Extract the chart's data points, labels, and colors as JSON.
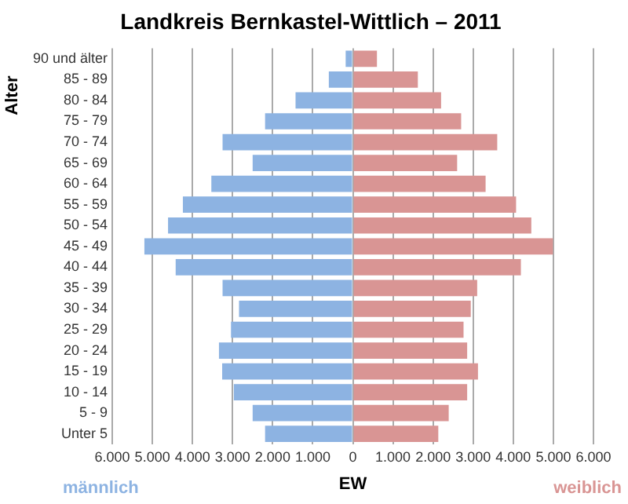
{
  "chart_data": {
    "type": "bar",
    "orientation": "horizontal",
    "stacked": true,
    "title": "Landkreis Bernkastel-Wittlich – 2011",
    "xlabel": "EW",
    "ylabel": "Alter",
    "categories": [
      "90 und älter",
      "85 - 89",
      "80 - 84",
      "75 - 79",
      "70 - 74",
      "65 - 69",
      "60 - 64",
      "55 - 59",
      "50 - 54",
      "45 - 49",
      "40 - 44",
      "35 - 39",
      "30 - 34",
      "25 - 29",
      "20 - 24",
      "15 - 19",
      "10 - 14",
      "5 - 9",
      "Unter 5"
    ],
    "series": [
      {
        "name": "männlich",
        "color": "#8db3e2",
        "values": [
          -180,
          -600,
          -1430,
          -2190,
          -3250,
          -2500,
          -3530,
          -4240,
          -4610,
          -5200,
          -4420,
          -3250,
          -2840,
          -3040,
          -3340,
          -3260,
          -2970,
          -2500,
          -2190
        ]
      },
      {
        "name": "weiblich",
        "color": "#d99594",
        "values": [
          600,
          1620,
          2200,
          2700,
          3600,
          2600,
          3310,
          4070,
          4450,
          4990,
          4190,
          3100,
          2940,
          2760,
          2850,
          3120,
          2850,
          2390,
          2130
        ]
      }
    ],
    "xlim": [
      -6000,
      6000
    ],
    "xticks": [
      {
        "value": -6000,
        "label": "6.000"
      },
      {
        "value": -5000,
        "label": "5.000"
      },
      {
        "value": -4000,
        "label": "4.000"
      },
      {
        "value": -3000,
        "label": "3.000"
      },
      {
        "value": -2000,
        "label": "2.000"
      },
      {
        "value": -1000,
        "label": "1.000"
      },
      0,
      {
        "value": 1000,
        "label": "1.000"
      },
      {
        "value": 2000,
        "label": "2.000"
      },
      {
        "value": 3000,
        "label": "3.000"
      },
      {
        "value": 4000,
        "label": "4.000"
      },
      {
        "value": 5000,
        "label": "5.000"
      },
      {
        "value": 6000,
        "label": "6.000"
      }
    ],
    "grid": "x",
    "legend": false
  }
}
